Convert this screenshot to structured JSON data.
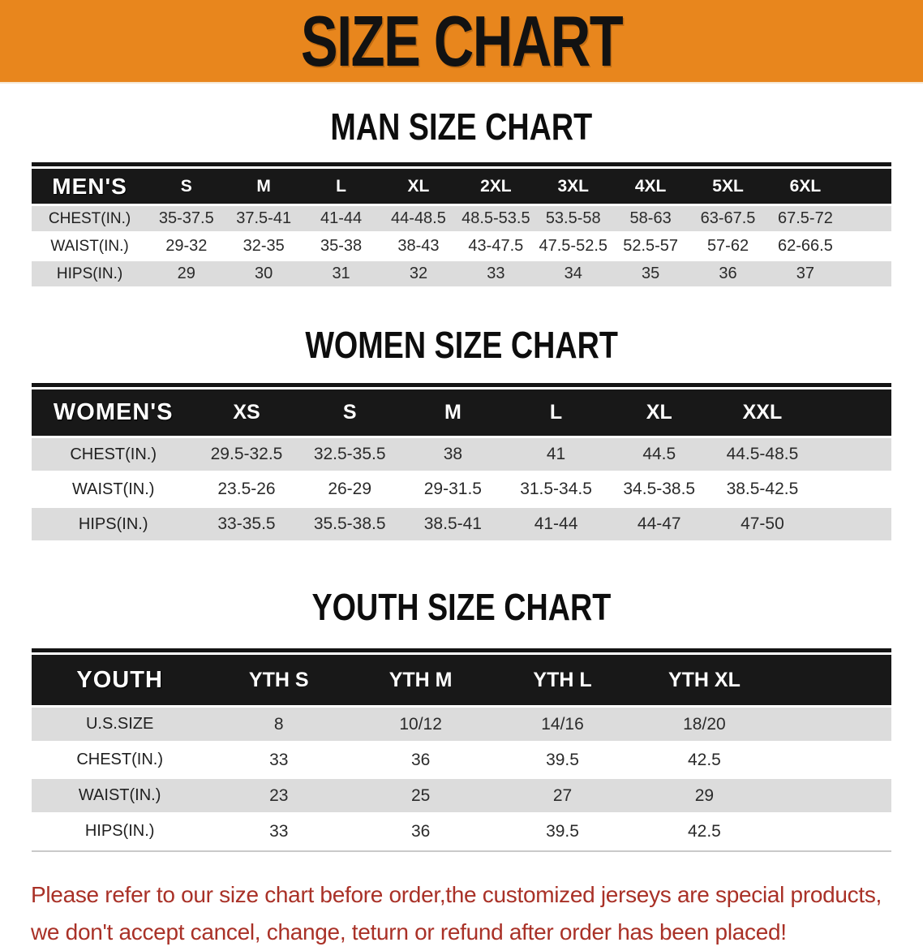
{
  "banner": {
    "title": "SIZE CHART",
    "bg_color": "#e8861d"
  },
  "sections": {
    "men": {
      "title": "MAN SIZE CHART",
      "table": {
        "corner_label": "MEN'S",
        "columns": [
          "S",
          "M",
          "L",
          "XL",
          "2XL",
          "3XL",
          "4XL",
          "5XL",
          "6XL"
        ],
        "rows": [
          {
            "label": "CHEST(IN.)",
            "values": [
              "35-37.5",
              "37.5-41",
              "41-44",
              "44-48.5",
              "48.5-53.5",
              "53.5-58",
              "58-63",
              "63-67.5",
              "67.5-72"
            ]
          },
          {
            "label": "WAIST(IN.)",
            "values": [
              "29-32",
              "32-35",
              "35-38",
              "38-43",
              "43-47.5",
              "47.5-52.5",
              "52.5-57",
              "57-62",
              "62-66.5"
            ]
          },
          {
            "label": "HIPS(IN.)",
            "values": [
              "29",
              "30",
              "31",
              "32",
              "33",
              "34",
              "35",
              "36",
              "37"
            ]
          }
        ]
      }
    },
    "women": {
      "title": "WOMEN SIZE CHART",
      "table": {
        "corner_label": "WOMEN'S",
        "columns": [
          "XS",
          "S",
          "M",
          "L",
          "XL",
          "XXL"
        ],
        "rows": [
          {
            "label": "CHEST(IN.)",
            "values": [
              "29.5-32.5",
              "32.5-35.5",
              "38",
              "41",
              "44.5",
              "44.5-48.5"
            ]
          },
          {
            "label": "WAIST(IN.)",
            "values": [
              "23.5-26",
              "26-29",
              "29-31.5",
              "31.5-34.5",
              "34.5-38.5",
              "38.5-42.5"
            ]
          },
          {
            "label": "HIPS(IN.)",
            "values": [
              "33-35.5",
              "35.5-38.5",
              "38.5-41",
              "41-44",
              "44-47",
              "47-50"
            ]
          }
        ]
      }
    },
    "youth": {
      "title": "YOUTH SIZE CHART",
      "table": {
        "corner_label": "YOUTH",
        "columns": [
          "YTH S",
          "YTH M",
          "YTH L",
          "YTH XL"
        ],
        "rows": [
          {
            "label": "U.S.SIZE",
            "values": [
              "8",
              "10/12",
              "14/16",
              "18/20"
            ]
          },
          {
            "label": "CHEST(IN.)",
            "values": [
              "33",
              "36",
              "39.5",
              "42.5"
            ]
          },
          {
            "label": "WAIST(IN.)",
            "values": [
              "23",
              "25",
              "27",
              "29"
            ]
          },
          {
            "label": "HIPS(IN.)",
            "values": [
              "33",
              "36",
              "39.5",
              "42.5"
            ]
          }
        ]
      }
    }
  },
  "disclaimer": {
    "line1": "Please refer to our size chart before order,the customized jerseys are special products,",
    "line2": "we don't accept cancel, change, teturn or refund after order has been placed!",
    "color": "#a93127"
  }
}
